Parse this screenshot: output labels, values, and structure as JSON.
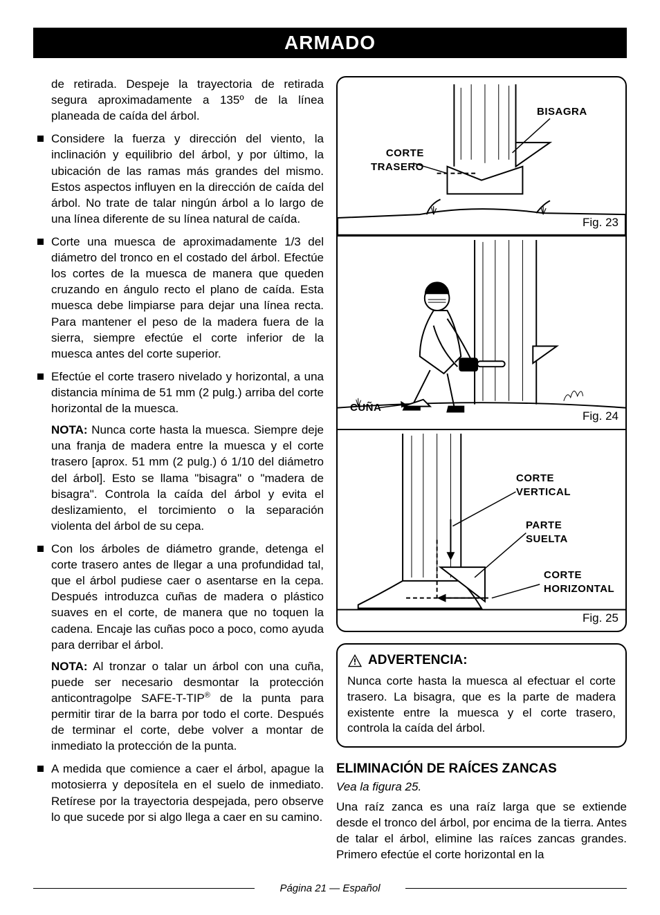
{
  "header": "ARMADO",
  "left": {
    "intro": "de retirada. Despeje la trayectoria de retirada segura aproximadamente a 135º de la línea planeada de caída del árbol.",
    "bullets": [
      {
        "text": "Considere la fuerza y dirección del viento, la inclinación y equilibrio del árbol, y por último, la ubicación de las ramas más grandes del mismo. Estos aspectos influyen en la dirección de caída del árbol. No trate de talar ningún árbol a lo largo de una línea diferente de su línea natural de caída."
      },
      {
        "text": "Corte una muesca de aproximadamente 1/3 del diámetro del tronco en el costado del árbol. Efectúe los cortes de la muesca de manera que queden cruzando en ángulo recto el plano de caída. Esta muesca debe limpiarse para dejar una línea recta. Para mantener el peso de la madera fuera de la sierra, siempre efectúe el corte inferior de la muesca antes del corte superior."
      },
      {
        "text": "Efectúe el corte trasero nivelado y horizontal, a una distancia mínima de 51 mm (2 pulg.) arriba del corte horizontal de la muesca.",
        "note_label": "NOTA:",
        "note": "Nunca corte hasta la muesca. Siempre deje una franja de madera entre la muesca y el corte trasero [aprox. 51 mm (2 pulg.) ó 1/10 del diámetro del árbol]. Esto se llama \"bisagra\" o \"madera de bisagra\". Controla la caída del árbol y evita el deslizamiento, el torcimiento o la separación violenta del árbol de su cepa."
      },
      {
        "text": "Con los árboles de diámetro grande, detenga el corte trasero antes de llegar a una profundidad tal, que el árbol pudiese caer o asentarse en la cepa. Después introduzca cuñas de madera o plástico suaves en el corte, de manera que no toquen la cadena. Encaje las cuñas poco a poco, como ayuda para derribar el árbol.",
        "note_label": "NOTA:",
        "note_html": "Al tronzar o talar un árbol con una cuña, puede ser necesario desmontar la protección anticontragolpe SAFE-T-TIP<span class=\"sup\">®</span> de la punta para permitir tirar de la barra por todo el corte. Después de terminar el corte, debe volver a montar de inmediato la protección de la punta."
      },
      {
        "text": "A medida que comience a caer el árbol, apague la motosierra y deposítela en el suelo de inmediato. Retírese por la trayectoria despejada, pero observe lo que sucede por si algo llega a caer en su camino."
      }
    ]
  },
  "figures": {
    "fig23": {
      "caption": "Fig. 23",
      "label_bisagra": "BISAGRA",
      "label_corte_trasero_1": "CORTE",
      "label_corte_trasero_2": "TRASERO"
    },
    "fig24": {
      "caption": "Fig. 24",
      "label_cuna": "CUÑA"
    },
    "fig25": {
      "caption": "Fig. 25",
      "label_vert1": "CORTE",
      "label_vert2": "VERTICAL",
      "label_parte1": "PARTE",
      "label_parte2": "SUELTA",
      "label_horiz1": "CORTE",
      "label_horiz2": "HORIZONTAL"
    }
  },
  "warning": {
    "title": "ADVERTENCIA:",
    "text": "Nunca corte hasta la muesca al efectuar el corte trasero. La bisagra, que es la parte de madera existente entre la muesca y el corte trasero, controla la caída del árbol."
  },
  "section": {
    "heading": "ELIMINACIÓN DE RAÍCES ZANCAS",
    "see": "Vea la figura 25.",
    "body": "Una raíz zanca es una raíz larga que se extiende desde el tronco del árbol, por encima de la tierra. Antes de talar el árbol, elimine las raíces zancas grandes. Primero efectúe el corte horizontal en la"
  },
  "footer": "Página 21 — Español",
  "colors": {
    "text": "#000000",
    "bg": "#ffffff",
    "band_bg": "#000000",
    "band_fg": "#ffffff",
    "border": "#000000"
  }
}
